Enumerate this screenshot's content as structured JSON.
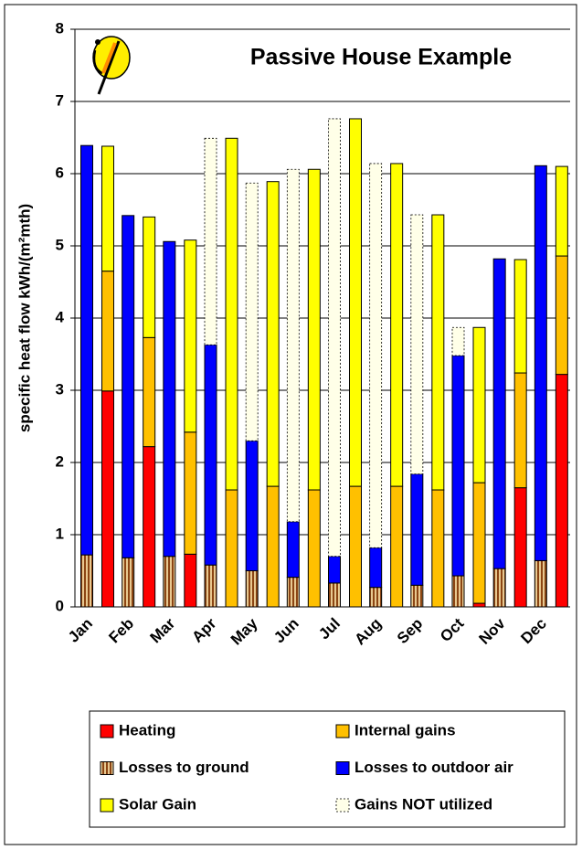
{
  "chart_data": {
    "type": "bar",
    "title": "Passive House Example",
    "y_label": "specific heat flow kWh/(m²mth)",
    "categories": [
      "Jan",
      "Feb",
      "Mar",
      "Apr",
      "May",
      "Jun",
      "Jul",
      "Aug",
      "Sep",
      "Oct",
      "Nov",
      "Dec"
    ],
    "ylim": [
      0,
      8
    ],
    "yticks": [
      0,
      1,
      2,
      3,
      4,
      5,
      6,
      7,
      8
    ],
    "grid": true,
    "series": [
      {
        "name": "Heating",
        "color": "#ff0000",
        "stack": "gains",
        "values": [
          2.99,
          2.22,
          0.73,
          0,
          0,
          0,
          0,
          0,
          0,
          0.05,
          1.65,
          3.22
        ]
      },
      {
        "name": "Internal gains",
        "color": "#ffc000",
        "stack": "gains",
        "values": [
          1.66,
          1.51,
          1.69,
          1.62,
          1.67,
          1.62,
          1.67,
          1.67,
          1.62,
          1.67,
          1.59,
          1.64
        ]
      },
      {
        "name": "Losses to ground",
        "color": "#b07840",
        "pattern": "stripes",
        "stack": "losses",
        "values": [
          0.72,
          0.68,
          0.7,
          0.58,
          0.5,
          0.41,
          0.33,
          0.27,
          0.3,
          0.43,
          0.53,
          0.64
        ]
      },
      {
        "name": "Losses to outdoor air",
        "color": "#0000ff",
        "stack": "losses",
        "values": [
          5.67,
          4.74,
          4.36,
          3.05,
          1.8,
          0.77,
          0.37,
          0.55,
          1.54,
          3.05,
          4.29,
          5.47
        ]
      },
      {
        "name": "Solar Gain",
        "color": "#ffff00",
        "stack": "gains",
        "values": [
          1.73,
          1.67,
          2.66,
          4.87,
          4.22,
          4.44,
          5.09,
          4.47,
          3.81,
          2.15,
          1.57,
          1.24
        ]
      },
      {
        "name": "Gains NOT utilized",
        "color": "#ffffe8",
        "dashed": true,
        "stack": "losses",
        "values": [
          0,
          0,
          0,
          2.86,
          3.57,
          4.88,
          6.06,
          5.32,
          3.59,
          0.39,
          0,
          0
        ]
      }
    ],
    "stack_order": [
      "losses",
      "gains"
    ]
  }
}
